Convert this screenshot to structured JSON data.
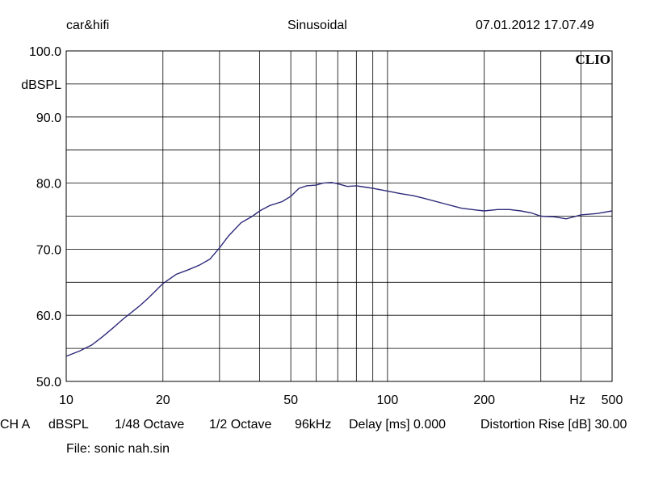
{
  "header": {
    "left": "car&hifi",
    "center": "Sinusoidal",
    "right": "07.01.2012 17.07.49"
  },
  "brand": "CLIO",
  "footer": {
    "items": [
      "CH A",
      "dBSPL",
      "1/48 Octave",
      "1/2 Octave",
      "96kHz",
      "Delay [ms] 0.000",
      "Distortion Rise [dB] 30.00"
    ],
    "file_label": "File: sonic nah.sin"
  },
  "chart_data": {
    "type": "line",
    "x_scale": "log",
    "xlim": [
      10,
      500
    ],
    "ylim": [
      50,
      100
    ],
    "ylabel": "dBSPL",
    "xlabel": "Hz",
    "grid": true,
    "x_ticks": [
      {
        "value": 10,
        "label": "10"
      },
      {
        "value": 20,
        "label": "20"
      },
      {
        "value": 50,
        "label": "50"
      },
      {
        "value": 100,
        "label": "100"
      },
      {
        "value": 200,
        "label": "200"
      },
      {
        "value": 500,
        "label": "500"
      }
    ],
    "y_ticks": [
      {
        "value": 100,
        "label": "100.0"
      },
      {
        "value": 90,
        "label": "90.0"
      },
      {
        "value": 80,
        "label": "80.0"
      },
      {
        "value": 70,
        "label": "70.0"
      },
      {
        "value": 60,
        "label": "60.0"
      },
      {
        "value": 50,
        "label": "50.0"
      }
    ],
    "line_color": "#2e2a7a",
    "series": [
      {
        "x": [
          10,
          11,
          12,
          13,
          14,
          15,
          17,
          18,
          20,
          22,
          24,
          26,
          28,
          30,
          32,
          35,
          38,
          40,
          43,
          47,
          50,
          53,
          56,
          60,
          63,
          67,
          70,
          75,
          80,
          85,
          90,
          100,
          110,
          120,
          130,
          150,
          170,
          190,
          200,
          220,
          240,
          260,
          280,
          300,
          330,
          360,
          400,
          450,
          500
        ],
        "y": [
          53.8,
          54.6,
          55.5,
          56.8,
          58.1,
          59.4,
          61.5,
          62.6,
          64.8,
          66.2,
          66.9,
          67.6,
          68.5,
          70.2,
          72.0,
          74.0,
          75.0,
          75.8,
          76.6,
          77.2,
          78.0,
          79.2,
          79.6,
          79.7,
          80.0,
          80.1,
          79.9,
          79.5,
          79.6,
          79.4,
          79.2,
          78.8,
          78.4,
          78.1,
          77.7,
          76.9,
          76.2,
          75.9,
          75.8,
          76.0,
          76.0,
          75.8,
          75.5,
          75.0,
          74.9,
          74.6,
          75.2,
          75.4,
          75.8
        ]
      }
    ]
  }
}
